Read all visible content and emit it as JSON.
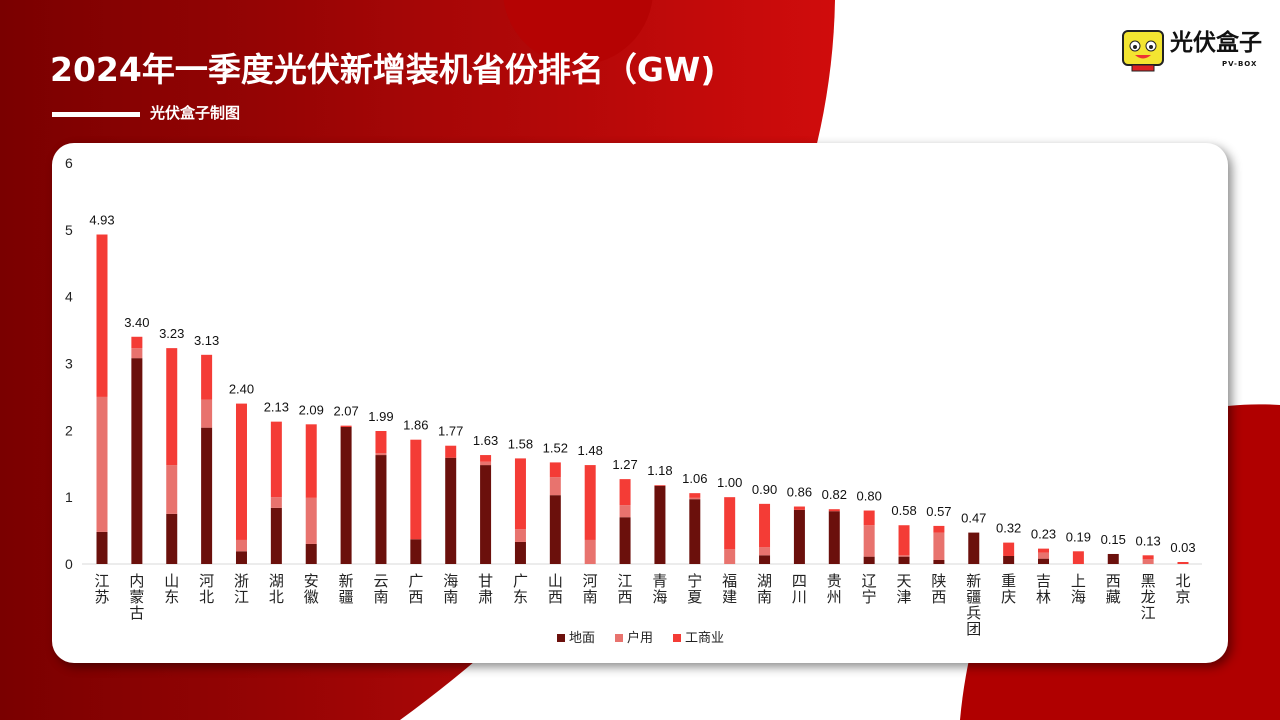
{
  "title": "2024年一季度光伏新增装机省份排名（GW)",
  "subtitle": "光伏盒子制图",
  "logo": {
    "name": "光伏盒子",
    "sub": "PV-BOX"
  },
  "colors": {
    "地面": "#6b100c",
    "户用": "#e8736e",
    "工商业": "#f43c36",
    "background": "#a30000"
  },
  "chart_data": {
    "type": "bar",
    "stacked": true,
    "categories": [
      "江苏",
      "内蒙古",
      "山东",
      "河北",
      "浙江",
      "湖北",
      "安徽",
      "新疆",
      "云南",
      "广西",
      "海南",
      "甘肃",
      "广东",
      "山西",
      "河南",
      "江西",
      "青海",
      "宁夏",
      "福建",
      "湖南",
      "四川",
      "贵州",
      "辽宁",
      "天津",
      "陕西",
      "新疆兵团",
      "重庆",
      "吉林",
      "上海",
      "西藏",
      "黑龙江",
      "北京"
    ],
    "totals": [
      "4.93",
      "3.40",
      "3.23",
      "3.13",
      "2.40",
      "2.13",
      "2.09",
      "2.07",
      "1.99",
      "1.86",
      "1.77",
      "1.63",
      "1.58",
      "1.52",
      "1.48",
      "1.27",
      "1.18",
      "1.06",
      "1.00",
      "0.90",
      "0.86",
      "0.82",
      "0.80",
      "0.58",
      "0.57",
      "0.47",
      "0.32",
      "0.23",
      "0.19",
      "0.15",
      "0.13",
      "0.03"
    ],
    "series": [
      {
        "name": "地面",
        "values": [
          0.48,
          3.08,
          0.75,
          2.04,
          0.19,
          0.84,
          0.3,
          2.05,
          1.63,
          0.37,
          1.59,
          1.48,
          0.33,
          1.03,
          0,
          0.7,
          1.17,
          0.97,
          0,
          0.13,
          0.81,
          0.79,
          0.11,
          0.11,
          0.06,
          0.47,
          0.12,
          0.08,
          0,
          0.15,
          0,
          0
        ]
      },
      {
        "name": "户用",
        "values": [
          2.02,
          0.15,
          0.73,
          0.42,
          0.17,
          0.16,
          0.69,
          0,
          0.03,
          0,
          0,
          0.05,
          0.19,
          0.27,
          0.36,
          0.18,
          0,
          0.02,
          0.22,
          0.12,
          0,
          0,
          0.47,
          0.02,
          0.41,
          0,
          0,
          0.09,
          0,
          0,
          0.07,
          0
        ]
      },
      {
        "name": "工商业",
        "values": [
          2.43,
          0.17,
          1.75,
          0.67,
          2.04,
          1.13,
          1.1,
          0.02,
          0.33,
          1.49,
          0.18,
          0.1,
          1.06,
          0.22,
          1.12,
          0.39,
          0.01,
          0.07,
          0.78,
          0.65,
          0.05,
          0.03,
          0.22,
          0.45,
          0.1,
          0,
          0.2,
          0.06,
          0.19,
          0,
          0.06,
          0.03
        ]
      }
    ],
    "ylim": [
      0,
      6
    ],
    "yticks": [
      "0",
      "1",
      "2",
      "3",
      "4",
      "5",
      "6"
    ],
    "grid": false,
    "legend": "bottom",
    "xlabel": "",
    "ylabel": ""
  }
}
